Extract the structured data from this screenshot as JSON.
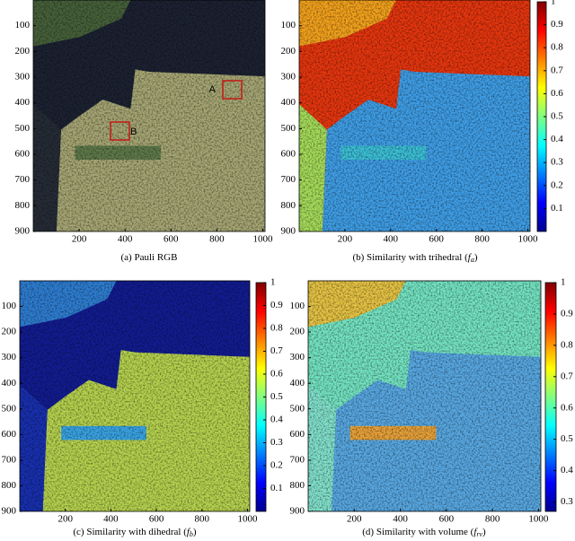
{
  "chart_data": [
    {
      "type": "image",
      "caption": {
        "text": "(a) Pauli RGB",
        "italic": null,
        "sub": null,
        "end": null
      },
      "xlim": [
        0,
        1010
      ],
      "ylim": [
        0,
        900
      ],
      "xticks": [
        200,
        400,
        600,
        800,
        1000
      ],
      "yticks": [
        100,
        200,
        300,
        400,
        500,
        600,
        700,
        800,
        900
      ],
      "annotations": [
        "A",
        "B"
      ],
      "colorbar": null
    },
    {
      "type": "image",
      "caption": {
        "text": "(b) Similarity with trihedral (",
        "italic": "f",
        "sub": "a",
        "end": ")"
      },
      "xlim": [
        0,
        1010
      ],
      "ylim": [
        0,
        900
      ],
      "xticks": [
        200,
        400,
        600,
        800,
        1000
      ],
      "yticks": [
        100,
        200,
        300,
        400,
        500,
        600,
        700,
        800,
        900
      ],
      "annotations": [],
      "colorbar": {
        "clim": [
          0,
          1
        ],
        "ticks": [
          0.1,
          0.2,
          0.3,
          0.4,
          0.5,
          0.6,
          0.7,
          0.8,
          0.9,
          1
        ]
      }
    },
    {
      "type": "image",
      "caption": {
        "text": "(c) Similarity with dihedral (",
        "italic": "f",
        "sub": "b",
        "end": ")"
      },
      "xlim": [
        0,
        1010
      ],
      "ylim": [
        0,
        900
      ],
      "xticks": [
        200,
        400,
        600,
        800,
        1000
      ],
      "yticks": [
        100,
        200,
        300,
        400,
        500,
        600,
        700,
        800,
        900
      ],
      "annotations": [],
      "colorbar": {
        "clim": [
          0,
          1
        ],
        "ticks": [
          0.1,
          0.2,
          0.3,
          0.4,
          0.5,
          0.6,
          0.7,
          0.8,
          0.9,
          1
        ]
      }
    },
    {
      "type": "image",
      "caption": {
        "text": "(d) Similarity with volume (",
        "italic": "f",
        "sub": "rv",
        "end": ")"
      },
      "xlim": [
        0,
        1010
      ],
      "ylim": [
        0,
        900
      ],
      "xticks": [
        200,
        400,
        600,
        800,
        1000
      ],
      "yticks": [
        100,
        200,
        300,
        400,
        500,
        600,
        700,
        800,
        900
      ],
      "annotations": [],
      "colorbar": {
        "clim": [
          0.27,
          1
        ],
        "ticks": [
          0.3,
          0.4,
          0.5,
          0.6,
          0.7,
          0.8,
          0.9,
          1
        ]
      }
    }
  ]
}
